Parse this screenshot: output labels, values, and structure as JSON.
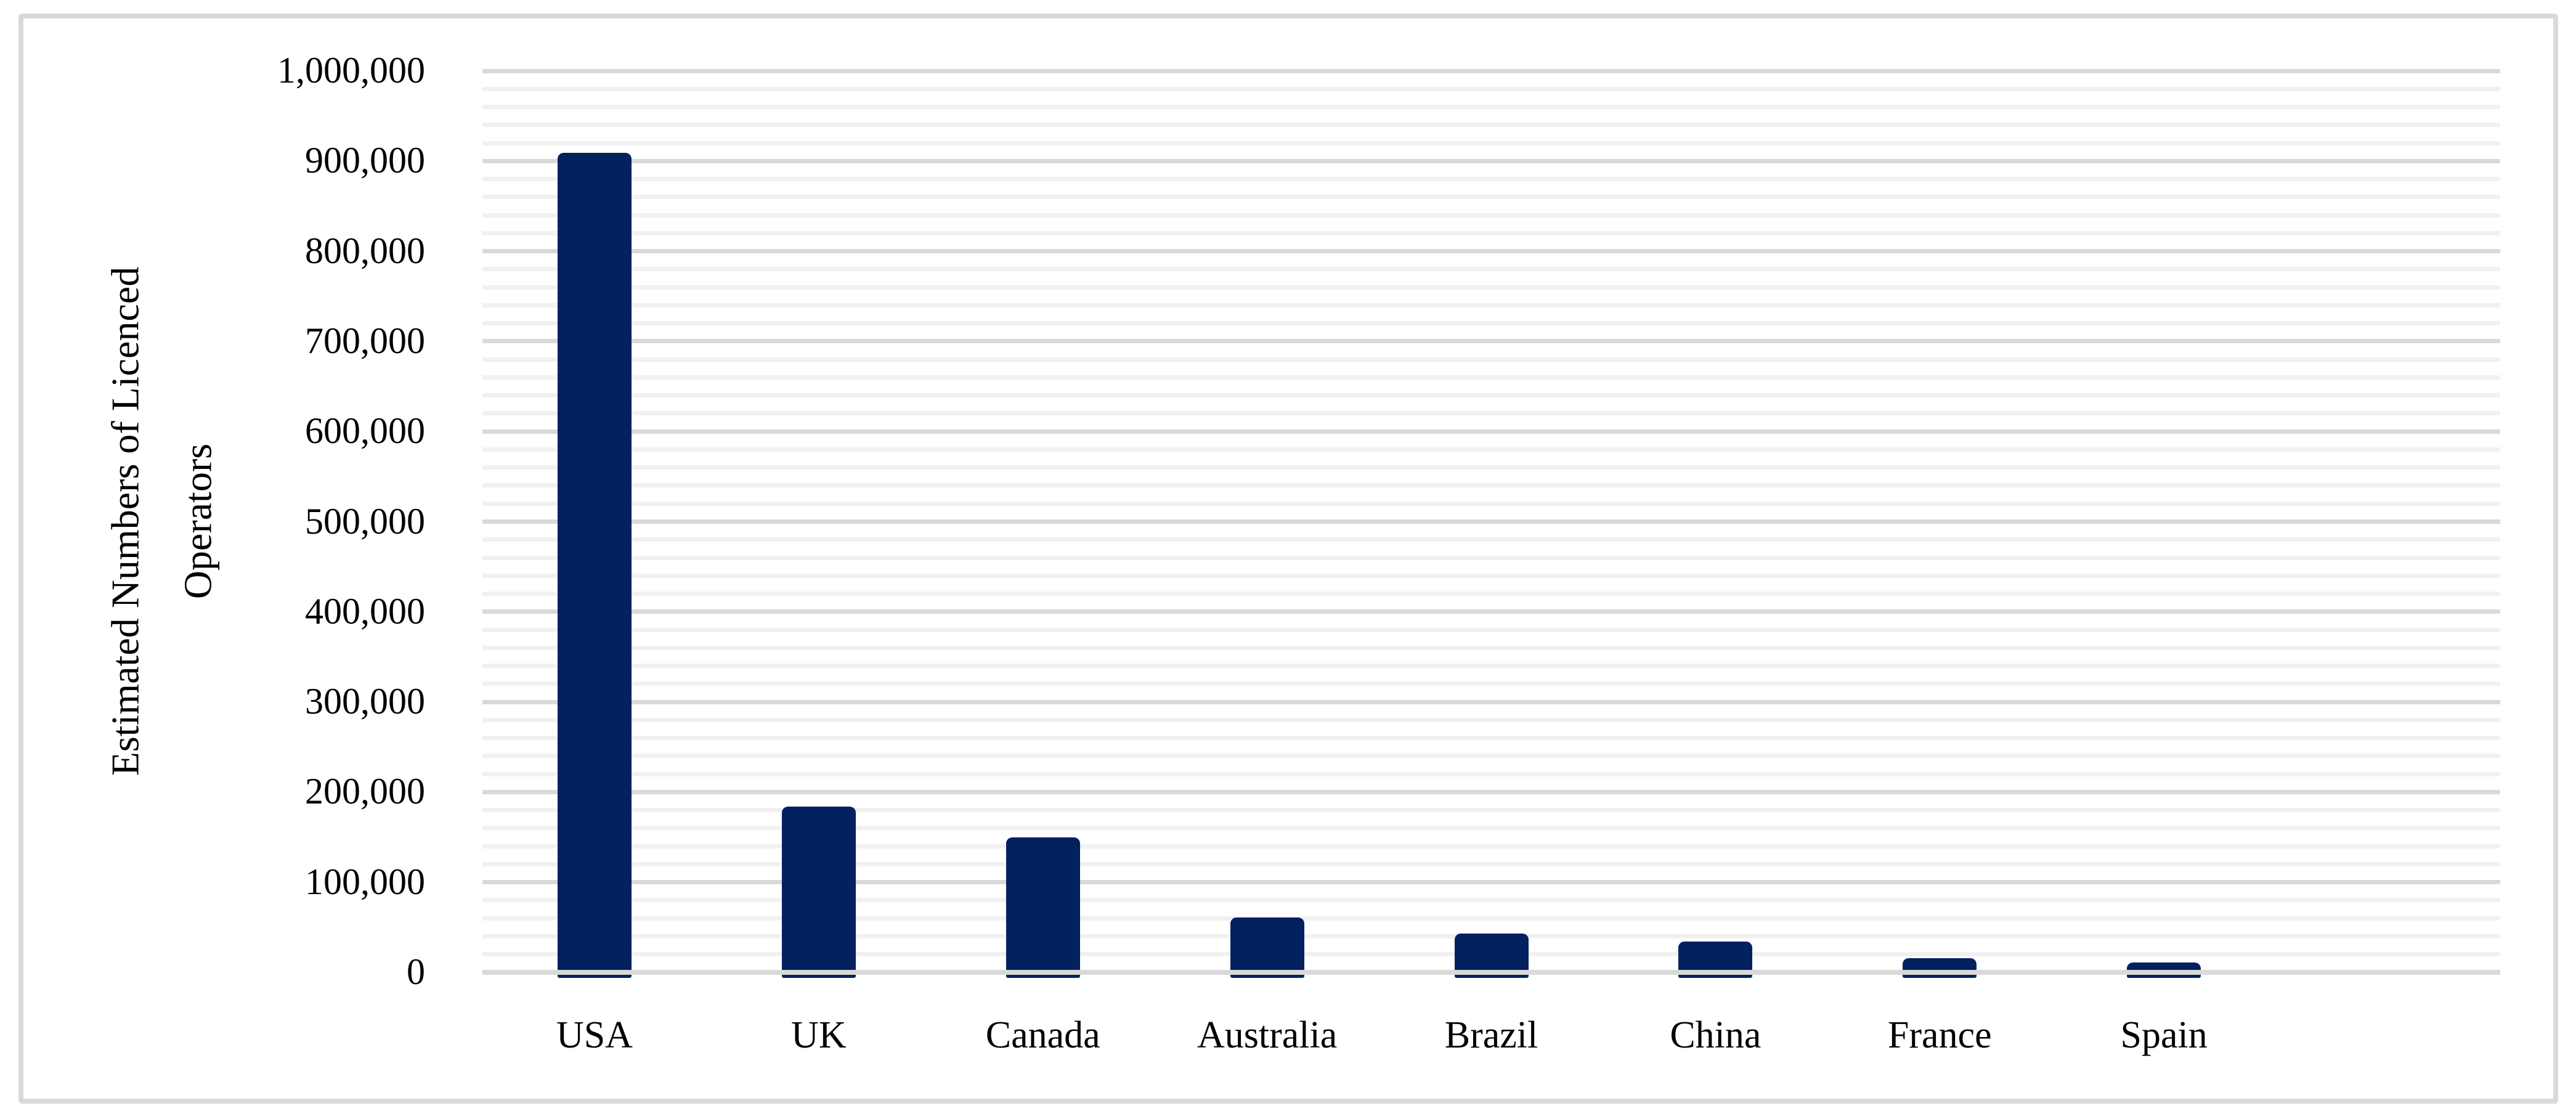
{
  "figure": {
    "background_color": "#ffffff",
    "border_color": "#d9d9d9"
  },
  "chart_data": {
    "type": "bar",
    "title": "",
    "xlabel": "",
    "ylabel": "Estimated Numbers of Licenced Operators",
    "ylabel_lines": [
      "Estimated Numbers of Licenced",
      "Operators"
    ],
    "categories": [
      "USA",
      "UK",
      "Canada",
      "Australia",
      "Brazil",
      "China",
      "France",
      "Spain"
    ],
    "values": [
      909000,
      184000,
      150000,
      61000,
      43000,
      34000,
      16000,
      11000
    ],
    "ylim": [
      0,
      1000000
    ],
    "y_major_step": 100000,
    "y_minor_step": 20000,
    "y_tick_labels": [
      "0",
      "100,000",
      "200,000",
      "300,000",
      "400,000",
      "500,000",
      "600,000",
      "700,000",
      "800,000",
      "900,000",
      "1,000,000"
    ],
    "bar_color": "#02215e",
    "grid": {
      "enabled": true,
      "minor_color": "#f1f1f1",
      "major_color": "#d9d9d9",
      "zero_line_color": "#d9d9d9"
    },
    "legend_position": "none",
    "layout": {
      "extra_empty_slots": 1,
      "gridlines_behind_bars": true,
      "zero_line_over_bars": true
    }
  }
}
